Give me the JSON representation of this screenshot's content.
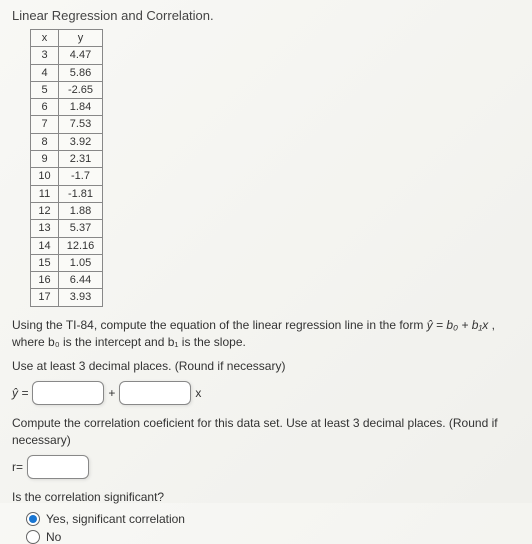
{
  "title": "Linear Regression and Correlation.",
  "table": {
    "headers": {
      "x": "x",
      "y": "y"
    },
    "rows": [
      {
        "x": "3",
        "y": "4.47"
      },
      {
        "x": "4",
        "y": "5.86"
      },
      {
        "x": "5",
        "y": "-2.65"
      },
      {
        "x": "6",
        "y": "1.84"
      },
      {
        "x": "7",
        "y": "7.53"
      },
      {
        "x": "8",
        "y": "3.92"
      },
      {
        "x": "9",
        "y": "2.31"
      },
      {
        "x": "10",
        "y": "-1.7"
      },
      {
        "x": "11",
        "y": "-1.81"
      },
      {
        "x": "12",
        "y": "1.88"
      },
      {
        "x": "13",
        "y": "5.37"
      },
      {
        "x": "14",
        "y": "12.16"
      },
      {
        "x": "15",
        "y": "1.05"
      },
      {
        "x": "16",
        "y": "6.44"
      },
      {
        "x": "17",
        "y": "3.93"
      }
    ]
  },
  "p1a": "Using the TI-84, compute the equation of the linear regression line in the form ",
  "p1eq": "ŷ = b₀ + b₁x",
  "p1b": ", where b₀ is the intercept and b₁ is the slope.",
  "p2": "Use at least 3 decimal places. (Round if necessary)",
  "eq": {
    "yhat": "ŷ =",
    "plus": "+",
    "xtrail": "x"
  },
  "p3": "Compute the correlation coeficient for this data set. Use at least 3 decimal places. (Round if necessary)",
  "req": "r=",
  "q": "Is the correlation significant?",
  "opt1": "Yes, significant correlation",
  "opt2": "No"
}
